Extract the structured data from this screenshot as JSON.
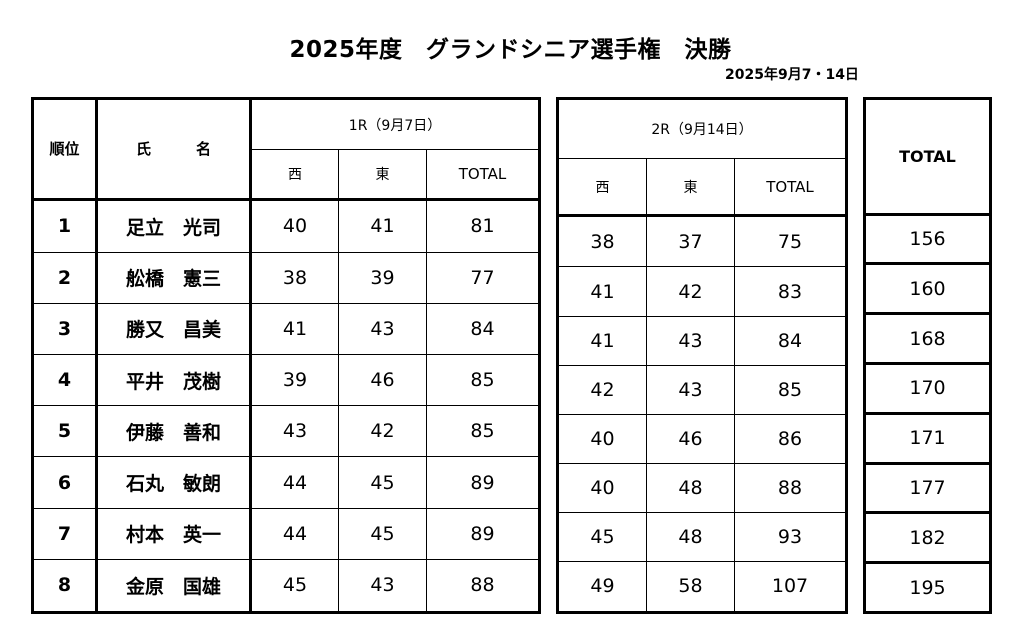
{
  "title": "2025年度　グランドシニア選手権　決勝",
  "date": "2025年9月7・14日",
  "headers": {
    "rank": "順位",
    "name": "氏　　　名",
    "round1": "1R（9月7日）",
    "round2": "2R（9月14日）",
    "west": "西",
    "east": "東",
    "total": "TOTAL",
    "grand_total": "TOTAL"
  },
  "rows": [
    {
      "rank": "1",
      "name": "足立　光司",
      "r1_west": "40",
      "r1_east": "41",
      "r1_total": "81",
      "r2_west": "38",
      "r2_east": "37",
      "r2_total": "75",
      "total": "156"
    },
    {
      "rank": "2",
      "name": "舩橋　憲三",
      "r1_west": "38",
      "r1_east": "39",
      "r1_total": "77",
      "r2_west": "41",
      "r2_east": "42",
      "r2_total": "83",
      "total": "160"
    },
    {
      "rank": "3",
      "name": "勝又　昌美",
      "r1_west": "41",
      "r1_east": "43",
      "r1_total": "84",
      "r2_west": "41",
      "r2_east": "43",
      "r2_total": "84",
      "total": "168"
    },
    {
      "rank": "4",
      "name": "平井　茂樹",
      "r1_west": "39",
      "r1_east": "46",
      "r1_total": "85",
      "r2_west": "42",
      "r2_east": "43",
      "r2_total": "85",
      "total": "170"
    },
    {
      "rank": "5",
      "name": "伊藤　善和",
      "r1_west": "43",
      "r1_east": "42",
      "r1_total": "85",
      "r2_west": "40",
      "r2_east": "46",
      "r2_total": "86",
      "total": "171"
    },
    {
      "rank": "6",
      "name": "石丸　敏朗",
      "r1_west": "44",
      "r1_east": "45",
      "r1_total": "89",
      "r2_west": "40",
      "r2_east": "48",
      "r2_total": "88",
      "total": "177"
    },
    {
      "rank": "7",
      "name": "村本　英一",
      "r1_west": "44",
      "r1_east": "45",
      "r1_total": "89",
      "r2_west": "45",
      "r2_east": "48",
      "r2_total": "93",
      "total": "182"
    },
    {
      "rank": "8",
      "name": "金原　国雄",
      "r1_west": "45",
      "r1_east": "43",
      "r1_total": "88",
      "r2_west": "49",
      "r2_east": "58",
      "r2_total": "107",
      "total": "195"
    }
  ]
}
